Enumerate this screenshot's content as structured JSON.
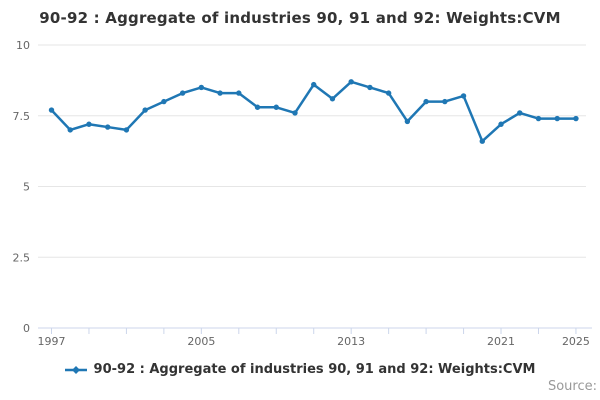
{
  "title": "90-92 : Aggregate of industries 90, 91 and 92: Weights:CVM",
  "legend": {
    "label": "90-92 : Aggregate of industries 90, 91 and 92: Weights:CVM"
  },
  "source": {
    "label": "Source:"
  },
  "colors": {
    "series": "#1f77b4",
    "gridline": "#e6e6e6",
    "axis_line": "#ccd6eb",
    "axis_label": "#666666",
    "title": "#333333",
    "source": "#999999",
    "background": "#ffffff"
  },
  "chart_data": {
    "type": "line",
    "title": "90-92 : Aggregate of industries 90, 91 and 92: Weights:CVM",
    "x": [
      1997,
      1998,
      1999,
      2000,
      2001,
      2002,
      2003,
      2004,
      2005,
      2006,
      2007,
      2008,
      2009,
      2010,
      2011,
      2012,
      2013,
      2014,
      2015,
      2016,
      2017,
      2018,
      2019,
      2020,
      2021,
      2022,
      2023,
      2024,
      2025
    ],
    "series": [
      {
        "name": "90-92 : Aggregate of industries 90, 91 and 92: Weights:CVM",
        "values": [
          7.7,
          7.0,
          7.2,
          7.1,
          7.0,
          7.7,
          8.0,
          8.3,
          8.5,
          8.3,
          8.3,
          7.8,
          7.8,
          7.6,
          8.6,
          8.1,
          8.7,
          8.5,
          8.3,
          7.3,
          8.0,
          8.0,
          8.2,
          6.6,
          7.2,
          7.6,
          7.4,
          7.4,
          7.4
        ]
      }
    ],
    "xlabel": "",
    "ylabel": "",
    "ylim": [
      0,
      10
    ],
    "yticks": [
      0,
      2.5,
      5,
      7.5,
      10
    ],
    "ytick_labels": [
      "0",
      "2.5",
      "5",
      "7.5",
      "10"
    ],
    "xtick_labels": [
      1997,
      2005,
      2013,
      2021,
      2025
    ],
    "minor_xtick_step_years": 2,
    "grid": true,
    "legend_position": "bottom",
    "marker": "circle"
  }
}
